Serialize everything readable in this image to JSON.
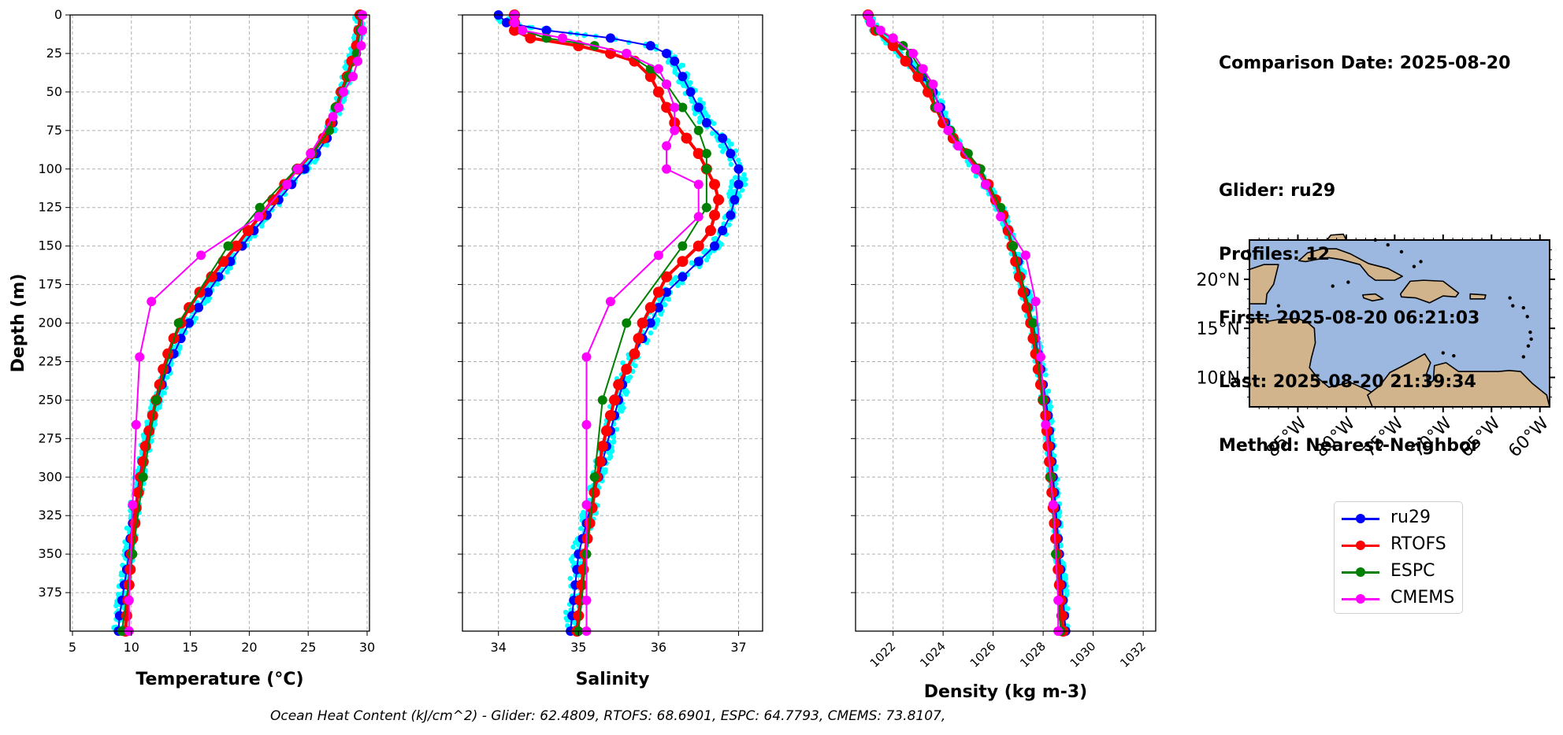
{
  "info": {
    "comparison_date": "Comparison Date: 2025-08-20",
    "glider": "Glider: ru29",
    "profiles": "Profiles: 12",
    "first": "First: 2025-08-20 06:21:03",
    "last": "Last: 2025-08-20 21:39:34",
    "method": "Method: Nearest-Neighbor"
  },
  "footer": "Ocean Heat Content (kJ/cm^2) - Glider: 62.4809,  RTOFS: 68.6901,  ESPC: 64.7793,  CMEMS: 73.8107,",
  "colors": {
    "ru29": "#0000ff",
    "RTOFS": "#ff0000",
    "ESPC": "#008000",
    "CMEMS": "#ff00ff",
    "scatter": "#00ffff",
    "ocean": "#9cb8e0",
    "land": "#d2b48c"
  },
  "legend": [
    {
      "name": "ru29",
      "color": "#0000ff"
    },
    {
      "name": "RTOFS",
      "color": "#ff0000"
    },
    {
      "name": "ESPC",
      "color": "#008000"
    },
    {
      "name": "CMEMS",
      "color": "#ff00ff"
    }
  ],
  "chart_data": [
    {
      "type": "line",
      "xlabel": "Temperature (°C)",
      "ylabel": "Depth (m)",
      "xlim": [
        4.8,
        30.2
      ],
      "ylim": [
        400,
        0
      ],
      "xticks": [
        5,
        10,
        15,
        20,
        25,
        30
      ],
      "yticks": [
        0,
        25,
        50,
        75,
        100,
        125,
        150,
        175,
        200,
        225,
        250,
        275,
        300,
        325,
        350,
        375
      ],
      "grid": true,
      "series": [
        {
          "name": "ru29",
          "depth": [
            0,
            10,
            20,
            30,
            40,
            50,
            60,
            70,
            80,
            90,
            100,
            110,
            120,
            130,
            140,
            150,
            160,
            170,
            180,
            190,
            200,
            210,
            220,
            230,
            240,
            250,
            260,
            270,
            280,
            290,
            300,
            310,
            320,
            330,
            340,
            350,
            360,
            370,
            380,
            390,
            400
          ],
          "values": [
            29.4,
            29.3,
            29.1,
            28.7,
            28.3,
            27.9,
            27.5,
            27.1,
            26.6,
            25.7,
            24.7,
            23.6,
            22.5,
            21.5,
            20.4,
            19.4,
            18.4,
            17.4,
            16.5,
            15.7,
            14.9,
            14.2,
            13.6,
            13.0,
            12.6,
            12.2,
            11.8,
            11.5,
            11.2,
            10.9,
            10.7,
            10.5,
            10.3,
            10.1,
            9.9,
            9.8,
            9.6,
            9.4,
            9.2,
            9.0,
            8.9
          ]
        },
        {
          "name": "RTOFS",
          "depth": [
            0,
            10,
            20,
            30,
            40,
            50,
            60,
            70,
            80,
            90,
            100,
            110,
            120,
            130,
            140,
            150,
            160,
            170,
            180,
            190,
            200,
            210,
            220,
            230,
            240,
            250,
            260,
            270,
            280,
            290,
            300,
            310,
            320,
            330,
            340,
            350,
            360,
            370,
            380,
            390,
            400
          ],
          "values": [
            29.4,
            29.3,
            29.1,
            28.7,
            28.3,
            27.8,
            27.4,
            26.9,
            26.3,
            25.3,
            24.1,
            23.0,
            22.0,
            21.0,
            19.9,
            18.9,
            17.8,
            16.8,
            15.8,
            14.9,
            14.2,
            13.6,
            13.1,
            12.7,
            12.4,
            12.1,
            11.8,
            11.5,
            11.2,
            11.0,
            10.8,
            10.6,
            10.4,
            10.3,
            10.1,
            10.0,
            9.9,
            9.8,
            9.7,
            9.6,
            9.5
          ]
        },
        {
          "name": "ESPC",
          "depth": [
            0,
            10,
            25,
            40,
            50,
            60,
            75,
            90,
            100,
            125,
            150,
            200,
            250,
            300,
            350,
            400
          ],
          "values": [
            29.5,
            29.4,
            29.1,
            28.4,
            27.9,
            27.3,
            26.8,
            25.3,
            24.0,
            20.9,
            18.2,
            14.0,
            12.1,
            11.0,
            10.1,
            9.2
          ]
        },
        {
          "name": "CMEMS",
          "depth": [
            0,
            10,
            20,
            30,
            40,
            50,
            60,
            66,
            90,
            100,
            110,
            131,
            156,
            186,
            222,
            266,
            318,
            380,
            400
          ],
          "values": [
            29.6,
            29.6,
            29.5,
            29.2,
            28.8,
            28.0,
            27.6,
            27.1,
            25.2,
            24.1,
            23.2,
            20.8,
            15.9,
            11.7,
            10.7,
            10.4,
            10.1,
            9.8,
            9.8
          ]
        }
      ]
    },
    {
      "type": "line",
      "xlabel": "Salinity",
      "xlim": [
        33.55,
        37.3
      ],
      "ylim": [
        400,
        0
      ],
      "xticks": [
        34,
        35,
        36,
        37
      ],
      "grid": true,
      "series": [
        {
          "name": "ru29",
          "depth": [
            0,
            5,
            10,
            15,
            20,
            25,
            30,
            40,
            50,
            60,
            70,
            80,
            90,
            100,
            110,
            120,
            130,
            140,
            150,
            160,
            170,
            180,
            190,
            200,
            210,
            220,
            230,
            240,
            250,
            260,
            270,
            280,
            290,
            300,
            310,
            320,
            330,
            340,
            350,
            360,
            370,
            380,
            390,
            400
          ],
          "values": [
            34.0,
            34.1,
            34.6,
            35.4,
            35.9,
            36.1,
            36.2,
            36.3,
            36.4,
            36.5,
            36.6,
            36.8,
            36.9,
            37.0,
            37.0,
            36.95,
            36.9,
            36.8,
            36.7,
            36.5,
            36.3,
            36.1,
            36.0,
            35.9,
            35.8,
            35.7,
            35.6,
            35.55,
            35.5,
            35.45,
            35.4,
            35.35,
            35.3,
            35.25,
            35.2,
            35.15,
            35.1,
            35.05,
            35.0,
            34.98,
            34.96,
            34.94,
            34.92,
            34.9
          ]
        },
        {
          "name": "RTOFS",
          "depth": [
            0,
            5,
            10,
            15,
            20,
            25,
            30,
            40,
            50,
            60,
            70,
            80,
            90,
            100,
            110,
            120,
            130,
            140,
            150,
            160,
            170,
            180,
            190,
            200,
            210,
            220,
            230,
            240,
            250,
            260,
            270,
            280,
            290,
            300,
            310,
            320,
            330,
            340,
            350,
            360,
            370,
            380,
            390,
            400
          ],
          "values": [
            34.2,
            34.2,
            34.2,
            34.4,
            35.0,
            35.4,
            35.7,
            35.9,
            36.0,
            36.1,
            36.2,
            36.35,
            36.5,
            36.6,
            36.7,
            36.75,
            36.7,
            36.65,
            36.5,
            36.3,
            36.1,
            36.0,
            35.9,
            35.8,
            35.75,
            35.7,
            35.6,
            35.5,
            35.45,
            35.4,
            35.35,
            35.3,
            35.27,
            35.23,
            35.2,
            35.17,
            35.14,
            35.11,
            35.08,
            35.06,
            35.04,
            35.02,
            35.0,
            34.98
          ]
        },
        {
          "name": "ESPC",
          "depth": [
            0,
            5,
            10,
            15,
            20,
            25,
            35,
            45,
            60,
            75,
            90,
            100,
            125,
            150,
            200,
            250,
            300,
            350,
            400
          ],
          "values": [
            34.2,
            34.2,
            34.3,
            34.6,
            35.2,
            35.6,
            35.9,
            36.1,
            36.3,
            36.5,
            36.6,
            36.6,
            36.6,
            36.3,
            35.6,
            35.3,
            35.2,
            35.1,
            35.0
          ]
        },
        {
          "name": "CMEMS",
          "depth": [
            0,
            5,
            10,
            15,
            25,
            35,
            45,
            60,
            75,
            85,
            100,
            110,
            131,
            156,
            186,
            222,
            266,
            318,
            380,
            400
          ],
          "values": [
            34.2,
            34.2,
            34.3,
            34.8,
            35.6,
            36.0,
            36.1,
            36.2,
            36.2,
            36.1,
            36.1,
            36.5,
            36.5,
            36.0,
            35.4,
            35.1,
            35.1,
            35.1,
            35.1,
            35.1
          ]
        }
      ]
    },
    {
      "type": "line",
      "xlabel": "Density (kg m-3)",
      "xlim": [
        1020.5,
        1032.5
      ],
      "ylim": [
        400,
        0
      ],
      "xticks": [
        1022,
        1024,
        1026,
        1028,
        1030,
        1032
      ],
      "grid": true,
      "series": [
        {
          "name": "ru29",
          "depth": [
            0,
            10,
            20,
            30,
            40,
            50,
            60,
            70,
            80,
            90,
            100,
            110,
            120,
            130,
            140,
            150,
            160,
            170,
            180,
            190,
            200,
            210,
            220,
            230,
            240,
            250,
            260,
            270,
            280,
            290,
            300,
            310,
            320,
            330,
            340,
            350,
            360,
            370,
            380,
            390,
            400
          ],
          "values": [
            1021.0,
            1021.3,
            1022.0,
            1022.6,
            1023.2,
            1023.6,
            1023.9,
            1024.1,
            1024.4,
            1024.9,
            1025.3,
            1025.7,
            1026.1,
            1026.4,
            1026.6,
            1026.8,
            1027.0,
            1027.1,
            1027.3,
            1027.4,
            1027.6,
            1027.7,
            1027.8,
            1027.9,
            1028.0,
            1028.1,
            1028.2,
            1028.25,
            1028.3,
            1028.35,
            1028.4,
            1028.45,
            1028.5,
            1028.55,
            1028.6,
            1028.65,
            1028.7,
            1028.75,
            1028.8,
            1028.85,
            1028.9
          ]
        },
        {
          "name": "RTOFS",
          "depth": [
            0,
            10,
            20,
            30,
            40,
            50,
            60,
            70,
            80,
            90,
            100,
            110,
            120,
            130,
            140,
            150,
            160,
            170,
            180,
            190,
            200,
            210,
            220,
            230,
            240,
            250,
            260,
            270,
            280,
            290,
            300,
            310,
            320,
            330,
            340,
            350,
            360,
            370,
            380,
            390,
            400
          ],
          "values": [
            1021.0,
            1021.3,
            1022.0,
            1022.5,
            1023.0,
            1023.4,
            1023.7,
            1024.0,
            1024.4,
            1024.9,
            1025.4,
            1025.8,
            1026.1,
            1026.4,
            1026.6,
            1026.75,
            1026.9,
            1027.05,
            1027.2,
            1027.35,
            1027.5,
            1027.6,
            1027.7,
            1027.8,
            1027.9,
            1028.0,
            1028.1,
            1028.15,
            1028.2,
            1028.25,
            1028.3,
            1028.35,
            1028.4,
            1028.45,
            1028.5,
            1028.55,
            1028.6,
            1028.65,
            1028.7,
            1028.75,
            1028.8
          ]
        },
        {
          "name": "ESPC",
          "depth": [
            0,
            5,
            10,
            15,
            20,
            25,
            35,
            45,
            60,
            75,
            90,
            100,
            125,
            150,
            200,
            250,
            300,
            350,
            400
          ],
          "values": [
            1021.0,
            1021.1,
            1021.4,
            1022.0,
            1022.4,
            1022.7,
            1023.1,
            1023.5,
            1023.7,
            1024.3,
            1025.0,
            1025.5,
            1026.3,
            1026.8,
            1027.6,
            1028.0,
            1028.3,
            1028.5,
            1028.7
          ]
        },
        {
          "name": "CMEMS",
          "depth": [
            0,
            5,
            10,
            15,
            25,
            35,
            45,
            60,
            75,
            85,
            100,
            110,
            131,
            156,
            186,
            222,
            266,
            318,
            380,
            400
          ],
          "values": [
            1021.0,
            1021.1,
            1021.5,
            1022.0,
            1022.8,
            1023.2,
            1023.6,
            1023.8,
            1024.2,
            1024.6,
            1025.3,
            1025.7,
            1026.3,
            1027.3,
            1027.7,
            1027.9,
            1028.1,
            1028.4,
            1028.6,
            1028.6
          ]
        }
      ]
    },
    {
      "type": "map",
      "lat_ticks": [
        "20°N",
        "15°N",
        "10°N"
      ],
      "lon_ticks": [
        "85°W",
        "80°W",
        "75°W",
        "70°W",
        "65°W",
        "60°W"
      ],
      "lat_values": [
        20,
        15,
        10
      ],
      "lon_values": [
        -85,
        -80,
        -75,
        -70,
        -65,
        -60
      ],
      "extent": {
        "lon": [
          -90,
          -59
        ],
        "lat": [
          7,
          24
        ]
      }
    }
  ]
}
